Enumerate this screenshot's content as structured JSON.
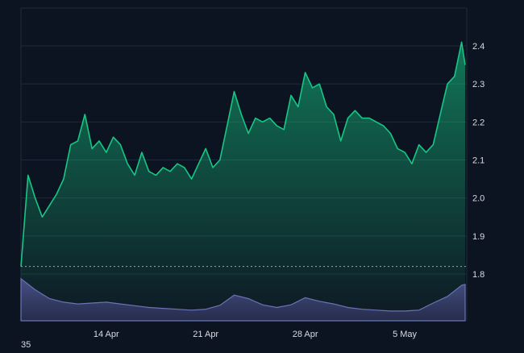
{
  "chart_data": {
    "type": "area",
    "title": "",
    "xlabel": "",
    "ylabel": "",
    "ylim": [
      1.8,
      2.45
    ],
    "y_ticks": [
      1.8,
      1.9,
      2.0,
      2.1,
      2.2,
      2.3,
      2.4
    ],
    "y_tick_labels": [
      "1.8",
      "1.9",
      "2.0",
      "2.1",
      "2.2",
      "2.3",
      "2.4"
    ],
    "x_range": [
      "2024-04-08",
      "2024-05-12"
    ],
    "x_ticks": [
      "2024-04-14",
      "2024-04-21",
      "2024-04-28",
      "2024-05-05"
    ],
    "x_tick_labels": [
      "14 Apr",
      "21 Apr",
      "28 Apr",
      "5 May"
    ],
    "baseline_value": 1.82,
    "grid": true,
    "colors": {
      "background": "#0d1421",
      "line": "#16c784",
      "area_top": "#16c784",
      "grid": "#1e2a3b",
      "volume_fill": "#3b4270",
      "volume_line": "#6b73b6",
      "tick_text": "#d7dbe0"
    },
    "series": [
      {
        "values": [
          [
            "2024-04-08",
            1.82
          ],
          [
            "2024-04-08T12:00",
            2.06
          ],
          [
            "2024-04-09",
            2.0
          ],
          [
            "2024-04-09T12:00",
            1.95
          ],
          [
            "2024-04-10",
            1.98
          ],
          [
            "2024-04-10T12:00",
            2.01
          ],
          [
            "2024-04-11",
            2.05
          ],
          [
            "2024-04-11T12:00",
            2.14
          ],
          [
            "2024-04-12",
            2.15
          ],
          [
            "2024-04-12T12:00",
            2.22
          ],
          [
            "2024-04-13",
            2.13
          ],
          [
            "2024-04-13T12:00",
            2.15
          ],
          [
            "2024-04-14",
            2.12
          ],
          [
            "2024-04-14T12:00",
            2.16
          ],
          [
            "2024-04-15",
            2.14
          ],
          [
            "2024-04-15T12:00",
            2.09
          ],
          [
            "2024-04-16",
            2.06
          ],
          [
            "2024-04-16T12:00",
            2.12
          ],
          [
            "2024-04-17",
            2.07
          ],
          [
            "2024-04-17T12:00",
            2.06
          ],
          [
            "2024-04-18",
            2.08
          ],
          [
            "2024-04-18T12:00",
            2.07
          ],
          [
            "2024-04-19",
            2.09
          ],
          [
            "2024-04-19T12:00",
            2.08
          ],
          [
            "2024-04-20",
            2.05
          ],
          [
            "2024-04-20T12:00",
            2.09
          ],
          [
            "2024-04-21",
            2.13
          ],
          [
            "2024-04-21T12:00",
            2.08
          ],
          [
            "2024-04-22",
            2.1
          ],
          [
            "2024-04-22T12:00",
            2.19
          ],
          [
            "2024-04-23",
            2.28
          ],
          [
            "2024-04-23T12:00",
            2.22
          ],
          [
            "2024-04-24",
            2.17
          ],
          [
            "2024-04-24T12:00",
            2.21
          ],
          [
            "2024-04-25",
            2.2
          ],
          [
            "2024-04-25T12:00",
            2.21
          ],
          [
            "2024-04-26",
            2.19
          ],
          [
            "2024-04-26T12:00",
            2.18
          ],
          [
            "2024-04-27",
            2.27
          ],
          [
            "2024-04-27T12:00",
            2.24
          ],
          [
            "2024-04-28",
            2.33
          ],
          [
            "2024-04-28T12:00",
            2.29
          ],
          [
            "2024-04-29",
            2.3
          ],
          [
            "2024-04-29T12:00",
            2.24
          ],
          [
            "2024-04-30",
            2.22
          ],
          [
            "2024-04-30T12:00",
            2.15
          ],
          [
            "2024-05-01",
            2.21
          ],
          [
            "2024-05-01T12:00",
            2.23
          ],
          [
            "2024-05-02",
            2.21
          ],
          [
            "2024-05-02T12:00",
            2.21
          ],
          [
            "2024-05-03",
            2.2
          ],
          [
            "2024-05-03T12:00",
            2.19
          ],
          [
            "2024-05-04",
            2.17
          ],
          [
            "2024-05-04T12:00",
            2.13
          ],
          [
            "2024-05-05",
            2.12
          ],
          [
            "2024-05-05T12:00",
            2.09
          ],
          [
            "2024-05-06",
            2.14
          ],
          [
            "2024-05-06T12:00",
            2.12
          ],
          [
            "2024-05-07",
            2.14
          ],
          [
            "2024-05-07T12:00",
            2.22
          ],
          [
            "2024-05-08",
            2.3
          ],
          [
            "2024-05-08T12:00",
            2.32
          ],
          [
            "2024-05-09",
            2.41
          ],
          [
            "2024-05-09T06:00",
            2.35
          ]
        ]
      }
    ],
    "volume": {
      "values": [
        [
          "2024-04-08",
          0.95
        ],
        [
          "2024-04-09",
          0.7
        ],
        [
          "2024-04-10",
          0.5
        ],
        [
          "2024-04-11",
          0.42
        ],
        [
          "2024-04-12",
          0.38
        ],
        [
          "2024-04-13",
          0.4
        ],
        [
          "2024-04-14",
          0.42
        ],
        [
          "2024-04-15",
          0.38
        ],
        [
          "2024-04-16",
          0.34
        ],
        [
          "2024-04-17",
          0.3
        ],
        [
          "2024-04-18",
          0.28
        ],
        [
          "2024-04-19",
          0.26
        ],
        [
          "2024-04-20",
          0.24
        ],
        [
          "2024-04-21",
          0.26
        ],
        [
          "2024-04-22",
          0.35
        ],
        [
          "2024-04-23",
          0.58
        ],
        [
          "2024-04-24",
          0.5
        ],
        [
          "2024-04-25",
          0.36
        ],
        [
          "2024-04-26",
          0.3
        ],
        [
          "2024-04-27",
          0.36
        ],
        [
          "2024-04-28",
          0.52
        ],
        [
          "2024-04-29",
          0.44
        ],
        [
          "2024-04-30",
          0.38
        ],
        [
          "2024-05-01",
          0.3
        ],
        [
          "2024-05-02",
          0.26
        ],
        [
          "2024-05-03",
          0.24
        ],
        [
          "2024-05-04",
          0.22
        ],
        [
          "2024-05-05",
          0.22
        ],
        [
          "2024-05-06",
          0.24
        ],
        [
          "2024-05-07",
          0.4
        ],
        [
          "2024-05-08",
          0.55
        ],
        [
          "2024-05-09",
          0.8
        ],
        [
          "2024-05-09T06:00",
          0.82
        ]
      ]
    },
    "corner_label": "35"
  }
}
